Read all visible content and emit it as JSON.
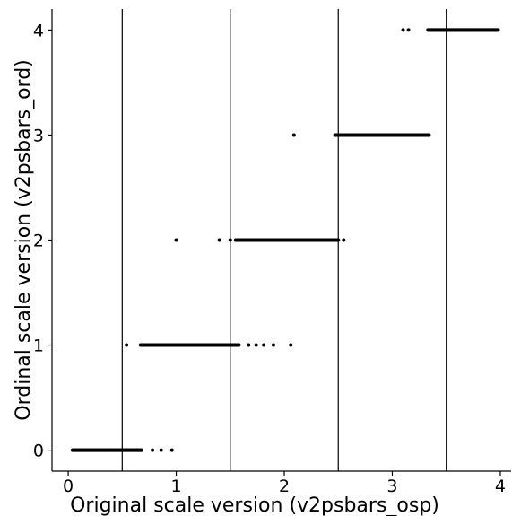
{
  "chart_data": {
    "type": "scatter",
    "xlabel": "Original scale version (v2psbars_osp)",
    "ylabel": "Ordinal scale version (v2psbars_ord)",
    "xlim": [
      -0.15,
      4.1
    ],
    "ylim": [
      -0.2,
      4.2
    ],
    "x_ticks": [
      0,
      1,
      2,
      3,
      4
    ],
    "y_ticks": [
      0,
      1,
      2,
      3,
      4
    ],
    "x_tick_labels": [
      "0",
      "1",
      "2",
      "3",
      "4"
    ],
    "y_tick_labels": [
      "0",
      "1",
      "2",
      "3",
      "4"
    ],
    "vlines": [
      0.5,
      1.5,
      2.5,
      3.5
    ],
    "grid": false,
    "legend": "none",
    "point_color": "#000000",
    "series": [
      {
        "dense_ranges": [
          {
            "y": 0,
            "x_start": 0.04,
            "x_end": 0.68
          },
          {
            "y": 1,
            "x_start": 0.67,
            "x_end": 1.58
          },
          {
            "y": 2,
            "x_start": 1.55,
            "x_end": 2.5
          },
          {
            "y": 3,
            "x_start": 2.47,
            "x_end": 3.34
          },
          {
            "y": 4,
            "x_start": 3.33,
            "x_end": 3.98
          }
        ],
        "points": [
          {
            "x": 0.78,
            "y": 0
          },
          {
            "x": 0.86,
            "y": 0
          },
          {
            "x": 0.96,
            "y": 0
          },
          {
            "x": 0.54,
            "y": 1
          },
          {
            "x": 1.67,
            "y": 1
          },
          {
            "x": 1.74,
            "y": 1
          },
          {
            "x": 1.81,
            "y": 1
          },
          {
            "x": 1.9,
            "y": 1
          },
          {
            "x": 2.06,
            "y": 1
          },
          {
            "x": 1.0,
            "y": 2
          },
          {
            "x": 1.4,
            "y": 2
          },
          {
            "x": 1.5,
            "y": 2
          },
          {
            "x": 2.55,
            "y": 2
          },
          {
            "x": 2.09,
            "y": 3
          },
          {
            "x": 3.1,
            "y": 4
          },
          {
            "x": 3.15,
            "y": 4
          }
        ]
      }
    ]
  }
}
